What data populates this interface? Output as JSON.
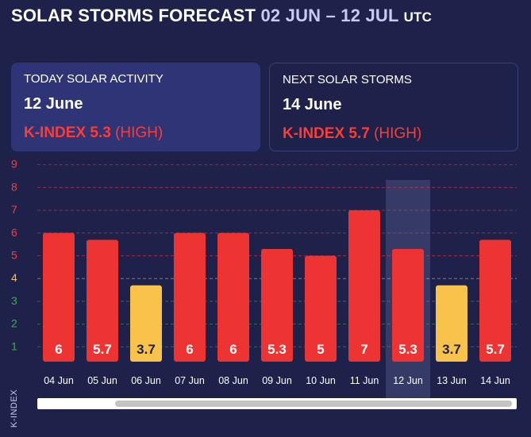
{
  "header": {
    "title": "SOLAR STORMS FORECAST",
    "range": "02 JUN – 12 JUL",
    "tz": "UTC"
  },
  "cards": {
    "today": {
      "label": "TODAY SOLAR ACTIVITY",
      "date": "12 June",
      "kindex": "K-INDEX 5.3",
      "level": "(HIGH)"
    },
    "next": {
      "label": "NEXT SOLAR STORMS",
      "date": "14 June",
      "kindex": "K-INDEX 5.7",
      "level": "(HIGH)"
    }
  },
  "colors": {
    "high": "#ee3432",
    "moderate": "#f9c24a",
    "highlight": "#353a66"
  },
  "chart_data": {
    "type": "bar",
    "ylabel": "K-INDEX",
    "ylim": [
      0,
      9
    ],
    "yticks": [
      {
        "label": "9",
        "color": "#ff3b35"
      },
      {
        "label": "8",
        "color": "#ff3b35"
      },
      {
        "label": "7",
        "color": "#ff3b35"
      },
      {
        "label": "6",
        "color": "#ff3b35"
      },
      {
        "label": "5",
        "color": "#ff3b35"
      },
      {
        "label": "4",
        "color": "#f9c24a"
      },
      {
        "label": "3",
        "color": "#3cb043"
      },
      {
        "label": "2",
        "color": "#3cb043"
      },
      {
        "label": "1",
        "color": "#3cb043"
      }
    ],
    "categories": [
      "04 Jun",
      "05 Jun",
      "06 Jun",
      "07 Jun",
      "08 Jun",
      "09 Jun",
      "10 Jun",
      "11 Jun",
      "12 Jun",
      "13 Jun",
      "14 Jun"
    ],
    "values": [
      6,
      5.7,
      3.7,
      6,
      6,
      5.3,
      5,
      7,
      5.3,
      3.7,
      5.7
    ],
    "labels": [
      "6",
      "5.7",
      "3.7",
      "6",
      "6",
      "5.3",
      "5",
      "7",
      "5.3",
      "3.7",
      "5.7"
    ],
    "severity": [
      "high",
      "high",
      "moderate",
      "high",
      "high",
      "high",
      "high",
      "high",
      "high",
      "moderate",
      "high"
    ],
    "highlighted": "12 Jun"
  }
}
